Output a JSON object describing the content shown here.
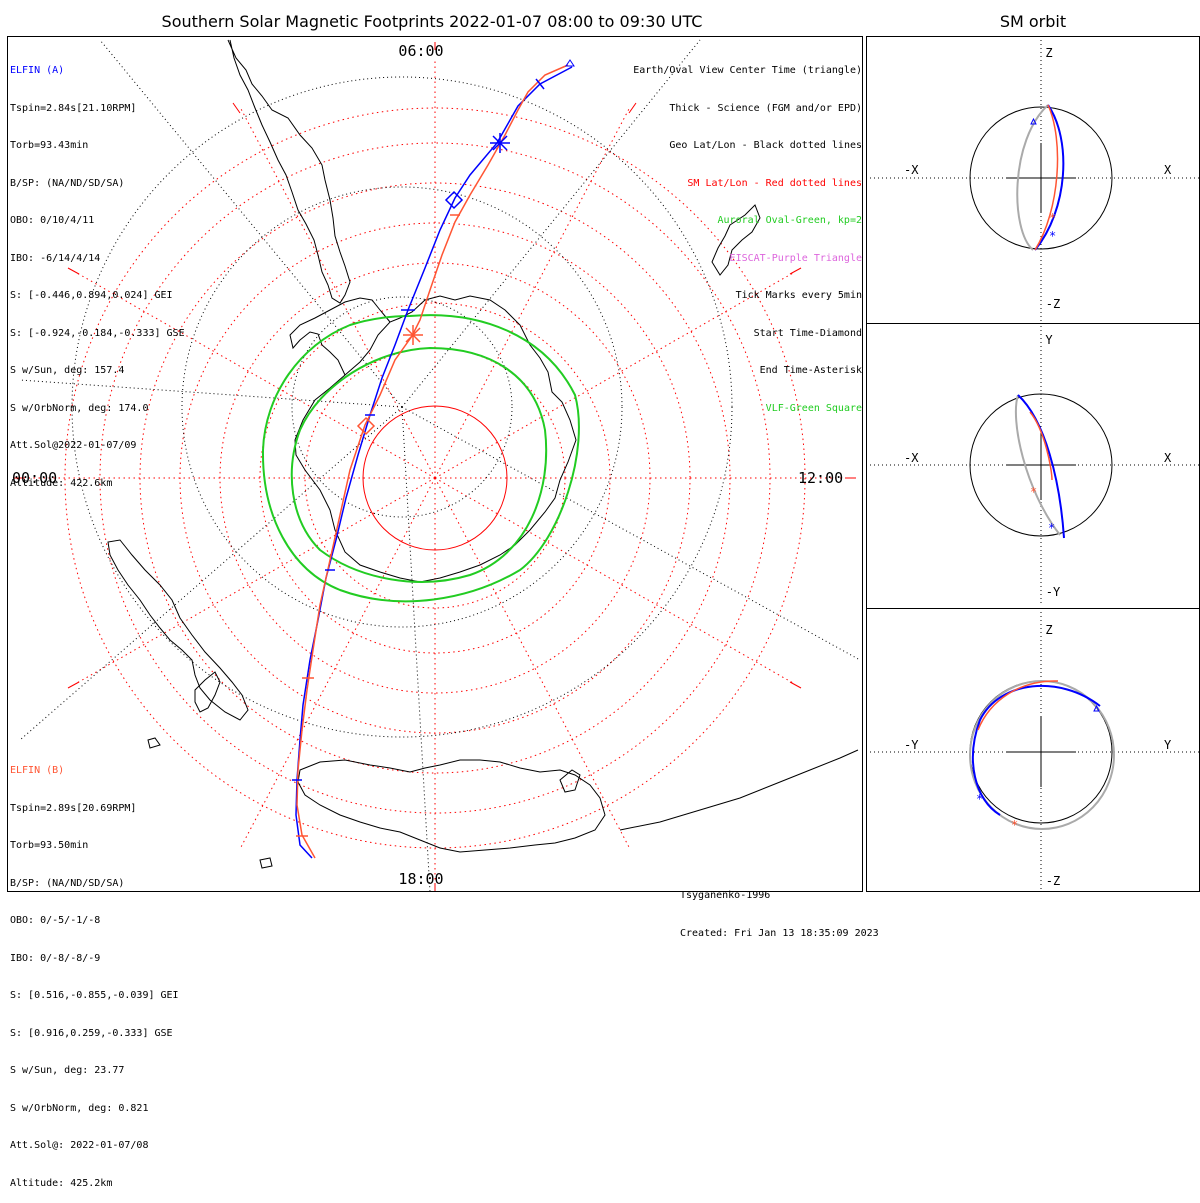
{
  "title": "Southern Solar Magnetic Footprints 2022-01-07 08:00 to 09:30 UTC",
  "sm_orbit_title": "SM orbit",
  "colors": {
    "elfin_a": "#0000ff",
    "elfin_b": "#ff5533",
    "geo_grid": "#000000",
    "sm_grid": "#ff0000",
    "auroral_oval": "#22cc22",
    "eiscat": "#dd66dd",
    "vlf": "#22cc22",
    "orbit_gray": "#aaaaaa"
  },
  "map": {
    "mlt_labels": {
      "top": "06:00",
      "left": "00:00",
      "right": "12:00",
      "bottom": "18:00"
    },
    "elfin_a": {
      "name": "ELFIN (A)",
      "lines": [
        "Tspin=2.84s[21.10RPM]",
        "Torb=93.43min",
        "B/SP: (NA/ND/SD/SA)",
        "OBO: 0/10/4/11",
        "IBO: -6/14/4/14",
        "S: [-0.446,0.894,0.024] GEI",
        "S: [-0.924,-0.184,-0.333] GSE",
        "S w/Sun, deg: 157.4",
        "S w/OrbNorm, deg: 174.0",
        "Att.Sol@2022-01-07/09",
        "Altitude: 422.6km"
      ]
    },
    "elfin_b": {
      "name": "ELFIN (B)",
      "lines": [
        "Tspin=2.89s[20.69RPM]",
        "Torb=93.50min",
        "B/SP: (NA/ND/SD/SA)",
        "OBO: 0/-5/-1/-8",
        "IBO: 0/-8/-8/-9",
        "S: [0.516,-0.855,-0.039] GEI",
        "S: [0.916,0.259,-0.333] GSE",
        "S w/Sun, deg: 23.77",
        "S w/OrbNorm, deg: 0.821",
        "Att.Sol@: 2022-01-07/08",
        "Altitude: 425.2km"
      ]
    },
    "legend": [
      {
        "text": "Earth/Oval View Center Time (triangle)",
        "color": "#000000"
      },
      {
        "text": "Thick - Science (FGM and/or EPD)",
        "color": "#000000"
      },
      {
        "text": "Geo Lat/Lon - Black dotted lines",
        "color": "#000000"
      },
      {
        "text": "SM Lat/Lon - Red dotted lines",
        "color": "#ff0000"
      },
      {
        "text": "Auroral Oval-Green, kp=2",
        "color": "#22cc22"
      },
      {
        "text": "EISCAT-Purple Triangle",
        "color": "#dd66dd"
      },
      {
        "text": "Tick Marks every 5min",
        "color": "#000000"
      },
      {
        "text": "Start Time-Diamond",
        "color": "#000000"
      },
      {
        "text": "End Time-Asterisk",
        "color": "#000000"
      },
      {
        "text": "VLF-Green Square",
        "color": "#22cc22"
      }
    ],
    "credit": {
      "model": "Tsyganenko-1996",
      "created": "Created: Fri Jan 13 18:35:09 2023"
    }
  },
  "panels": [
    {
      "id": "xz",
      "top": "Z",
      "bottom": "-Z",
      "left": "-X",
      "right": "X"
    },
    {
      "id": "xy",
      "top": "Y",
      "bottom": "-Y",
      "left": "-X",
      "right": "X"
    },
    {
      "id": "yz",
      "top": "Z",
      "bottom": "-Z",
      "left": "-Y",
      "right": "Y"
    }
  ]
}
